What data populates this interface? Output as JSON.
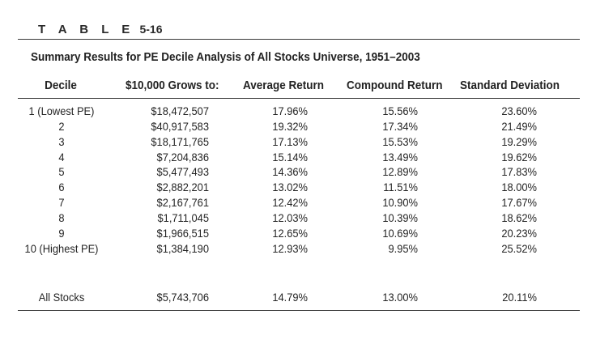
{
  "table_label": {
    "word": "T A B L E",
    "number": "5-16"
  },
  "caption": "Summary Results for PE Decile Analysis of All Stocks Universe, 1951–2003",
  "headers": [
    "Decile",
    "$10,000 Grows to:",
    "Average Return",
    "Compound Return",
    "Standard Deviation"
  ],
  "rows": [
    [
      "1 (Lowest PE)",
      "$18,472,507",
      "17.96%",
      "15.56%",
      "23.60%"
    ],
    [
      "2",
      "$40,917,583",
      "19.32%",
      "17.34%",
      "21.49%"
    ],
    [
      "3",
      "$18,171,765",
      "17.13%",
      "15.53%",
      "19.29%"
    ],
    [
      "4",
      "$7,204,836",
      "15.14%",
      "13.49%",
      "19.62%"
    ],
    [
      "5",
      "$5,477,493",
      "14.36%",
      "12.89%",
      "17.83%"
    ],
    [
      "6",
      "$2,882,201",
      "13.02%",
      "11.51%",
      "18.00%"
    ],
    [
      "7",
      "$2,167,761",
      "12.42%",
      "10.90%",
      "17.67%"
    ],
    [
      "8",
      "$1,711,045",
      "12.03%",
      "10.39%",
      "18.62%"
    ],
    [
      "9",
      "$1,966,515",
      "12.65%",
      "10.69%",
      "20.23%"
    ],
    [
      "10 (Highest PE)",
      "$1,384,190",
      "12.93%",
      "9.95%",
      "25.52%"
    ]
  ],
  "summary_row": [
    "All Stocks",
    "$5,743,706",
    "14.79%",
    "13.00%",
    "20.11%"
  ]
}
